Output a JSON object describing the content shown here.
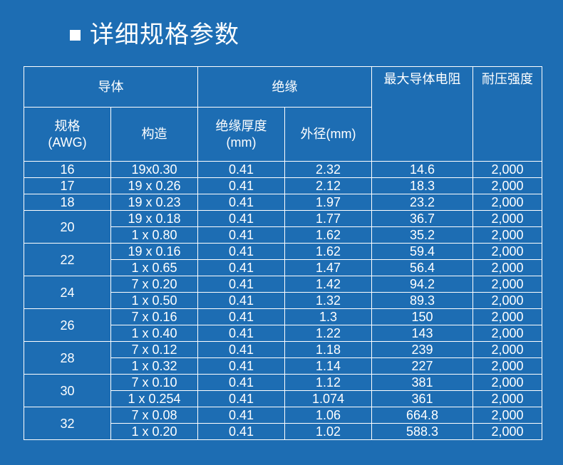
{
  "title": "详细规格参数",
  "table": {
    "header": {
      "conductor": "导体",
      "insulation": "绝缘",
      "max_resistance": "最大导体电阻",
      "withstand_voltage": "耐压强度",
      "gauge": "规格\n(AWG)",
      "construction": "构造",
      "insulation_thickness": "绝缘厚度\n(mm)",
      "outer_diameter": "外径(mm)"
    },
    "groups": [
      {
        "awg": "16",
        "rows": [
          [
            "19x0.30",
            "0.41",
            "2.32",
            "14.6",
            "2,000"
          ]
        ]
      },
      {
        "awg": "17",
        "rows": [
          [
            "19 x 0.26",
            "0.41",
            "2.12",
            "18.3",
            "2,000"
          ]
        ]
      },
      {
        "awg": "18",
        "rows": [
          [
            "19 x 0.23",
            "0.41",
            "1.97",
            "23.2",
            "2,000"
          ]
        ]
      },
      {
        "awg": "20",
        "rows": [
          [
            "19 x 0.18",
            "0.41",
            "1.77",
            "36.7",
            "2,000"
          ],
          [
            "1 x 0.80",
            "0.41",
            "1.62",
            "35.2",
            "2,000"
          ]
        ]
      },
      {
        "awg": "22",
        "rows": [
          [
            "19 x 0.16",
            "0.41",
            "1.62",
            "59.4",
            "2,000"
          ],
          [
            "1 x 0.65",
            "0.41",
            "1.47",
            "56.4",
            "2,000"
          ]
        ]
      },
      {
        "awg": "24",
        "rows": [
          [
            "7 x 0.20",
            "0.41",
            "1.42",
            "94.2",
            "2,000"
          ],
          [
            "1 x 0.50",
            "0.41",
            "1.32",
            "89.3",
            "2,000"
          ]
        ]
      },
      {
        "awg": "26",
        "rows": [
          [
            "7 x 0.16",
            "0.41",
            "1.3",
            "150",
            "2,000"
          ],
          [
            "1 x 0.40",
            "0.41",
            "1.22",
            "143",
            "2,000"
          ]
        ]
      },
      {
        "awg": "28",
        "rows": [
          [
            "7 x 0.12",
            "0.41",
            "1.18",
            "239",
            "2,000"
          ],
          [
            "1 x 0.32",
            "0.41",
            "1.14",
            "227",
            "2,000"
          ]
        ]
      },
      {
        "awg": "30",
        "rows": [
          [
            "7 x 0.10",
            "0.41",
            "1.12",
            "381",
            "2,000"
          ],
          [
            "1 x 0.254",
            "0.41",
            "1.074",
            "361",
            "2,000"
          ]
        ]
      },
      {
        "awg": "32",
        "rows": [
          [
            "7 x 0.08",
            "0.41",
            "1.06",
            "664.8",
            "2,000"
          ],
          [
            "1 x 0.20",
            "0.41",
            "1.02",
            "588.3",
            "2,000"
          ]
        ]
      }
    ]
  }
}
